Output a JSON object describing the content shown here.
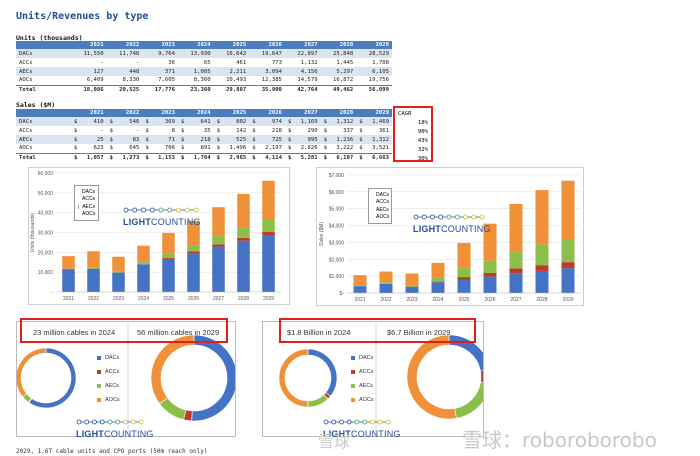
{
  "title": "Units/Revenues by type",
  "units_table": {
    "label": "Units (thousands)",
    "years": [
      "2021",
      "2022",
      "2023",
      "2024",
      "2025",
      "2026",
      "2027",
      "2028",
      "2029"
    ],
    "rows": [
      {
        "name": "DACs",
        "values": [
          "11,550",
          "11,748",
          "9,764",
          "13,930",
          "16,642",
          "19,647",
          "22,897",
          "25,848",
          "28,529"
        ]
      },
      {
        "name": "ACCs",
        "values": [
          "-",
          "-",
          "36",
          "65",
          "461",
          "773",
          "1,132",
          "1,445",
          "1,708"
        ]
      },
      {
        "name": "AECs",
        "values": [
          "127",
          "448",
          "371",
          "1,005",
          "2,211",
          "3,094",
          "4,156",
          "5,297",
          "6,105"
        ]
      },
      {
        "name": "AOCs",
        "values": [
          "6,409",
          "8,330",
          "7,605",
          "8,360",
          "10,493",
          "12,385",
          "14,579",
          "16,872",
          "19,756"
        ]
      },
      {
        "name": "Total",
        "values": [
          "18,086",
          "20,525",
          "17,776",
          "23,360",
          "29,807",
          "35,900",
          "42,764",
          "49,462",
          "56,099"
        ]
      }
    ]
  },
  "sales_table": {
    "label": "Sales ($M)",
    "currency": "$",
    "years": [
      "2021",
      "2022",
      "2023",
      "2024",
      "2025",
      "2026",
      "2027",
      "2028",
      "2029"
    ],
    "rows": [
      {
        "name": "DACs",
        "values": [
          "410",
          "546",
          "369",
          "641",
          "802",
          "974",
          "1,169",
          "1,312",
          "1,469"
        ]
      },
      {
        "name": "ACCs",
        "values": [
          "-",
          "-",
          "8",
          "35",
          "142",
          "218",
          "290",
          "337",
          "361"
        ]
      },
      {
        "name": "AECs",
        "values": [
          "25",
          "83",
          "71",
          "218",
          "525",
          "725",
          "995",
          "1,236",
          "1,312"
        ]
      },
      {
        "name": "AOCs",
        "values": [
          "623",
          "645",
          "706",
          "891",
          "1,496",
          "2,197",
          "2,826",
          "3,222",
          "3,521"
        ]
      },
      {
        "name": "Total",
        "values": [
          "1,057",
          "1,273",
          "1,153",
          "1,784",
          "2,965",
          "4,114",
          "5,281",
          "6,107",
          "6,663"
        ]
      }
    ],
    "cagr_header": "CAGR",
    "cagr": [
      "18%",
      "90%",
      "43%",
      "32%",
      "30%"
    ]
  },
  "colors": {
    "DACs": "#4472c4",
    "ACCs": "#c0392b",
    "AECs": "#8cbf4a",
    "AOCs": "#f0913a",
    "header": "#4a7ebf",
    "highlight": "#e02020"
  },
  "logo": {
    "bold": "LIGHT",
    "rest": "COUNTING"
  },
  "chart_data": [
    {
      "type": "bar",
      "stacked": true,
      "categories": [
        "2021",
        "2022",
        "2023",
        "2024",
        "2025",
        "2026",
        "2027",
        "2028",
        "2029"
      ],
      "ylabel": "Units (thousands)",
      "ylim": [
        0,
        60000
      ],
      "yticks": [
        "-",
        "10,000",
        "20,000",
        "30,000",
        "40,000",
        "50,000",
        "60,000"
      ],
      "legend": "top-left",
      "series": [
        {
          "name": "DACs",
          "values": [
            11550,
            11748,
            9764,
            13930,
            16642,
            19647,
            22897,
            25848,
            28529
          ]
        },
        {
          "name": "ACCs",
          "values": [
            0,
            0,
            36,
            65,
            461,
            773,
            1132,
            1445,
            1708
          ]
        },
        {
          "name": "AECs",
          "values": [
            127,
            448,
            371,
            1005,
            2211,
            3094,
            4156,
            5297,
            6105
          ]
        },
        {
          "name": "AOCs",
          "values": [
            6409,
            8330,
            7605,
            8360,
            10493,
            12385,
            14579,
            16872,
            19756
          ]
        }
      ]
    },
    {
      "type": "bar",
      "stacked": true,
      "categories": [
        "2021",
        "2022",
        "2023",
        "2024",
        "2025",
        "2026",
        "2027",
        "2028",
        "2029"
      ],
      "ylabel": "Sales ($M)",
      "ylim": [
        0,
        7000
      ],
      "yticks": [
        "$-",
        "$1,000",
        "$2,000",
        "$3,000",
        "$4,000",
        "$5,000",
        "$6,000",
        "$7,000"
      ],
      "legend": "top-left",
      "series": [
        {
          "name": "DACs",
          "values": [
            410,
            546,
            369,
            641,
            802,
            974,
            1169,
            1312,
            1469
          ]
        },
        {
          "name": "ACCs",
          "values": [
            0,
            0,
            8,
            35,
            142,
            218,
            290,
            337,
            361
          ]
        },
        {
          "name": "AECs",
          "values": [
            25,
            83,
            71,
            218,
            525,
            725,
            995,
            1236,
            1312
          ]
        },
        {
          "name": "AOCs",
          "values": [
            623,
            645,
            706,
            891,
            1496,
            2197,
            2826,
            3222,
            3521
          ]
        }
      ]
    },
    {
      "type": "pie",
      "donut": true,
      "labels": [
        "DACs",
        "ACCs",
        "AECs",
        "AOCs"
      ],
      "panels": [
        {
          "caption": "23 million cables in 2024",
          "values": [
            13930,
            65,
            1005,
            8360
          ]
        },
        {
          "caption": "56 million cables in 2029",
          "values": [
            28529,
            1708,
            6105,
            19756
          ]
        }
      ]
    },
    {
      "type": "pie",
      "donut": true,
      "labels": [
        "DACs",
        "ACCs",
        "AECs",
        "AOCs"
      ],
      "panels": [
        {
          "caption": "$1.8 Billion in 2024",
          "values": [
            641,
            35,
            218,
            891
          ]
        },
        {
          "caption": "$6.7 Billion in 2029",
          "values": [
            1469,
            361,
            1312,
            3521
          ]
        }
      ]
    }
  ],
  "watermark": {
    "main": "雪球：roboroborobo",
    "small": "雪球"
  },
  "footnote": "2029, 1.6T cable units and CPO ports (50m reach only)"
}
